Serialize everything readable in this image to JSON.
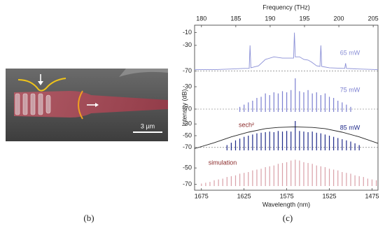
{
  "figure": {
    "panel_b_label": "(b)",
    "scale_bar": "3 µm",
    "panel_c_label": "(c)"
  },
  "chart_data": [
    {
      "type": "line",
      "x2label": "Frequency (THz)",
      "x2lim": [
        179,
        205.7
      ],
      "x2ticks": [
        180,
        185,
        190,
        195,
        200,
        205
      ],
      "xlim": [
        1683,
        1468
      ],
      "ylim": [
        -75,
        -5
      ],
      "yticks": [
        -10,
        -30,
        -70
      ],
      "reference_line": -70,
      "series": [
        {
          "name": "65 mW",
          "color": "#8a8fd6",
          "x": [
            1683,
            1660,
            1640,
            1625,
            1619,
            1618,
            1617,
            1608,
            1600,
            1590,
            1580,
            1572,
            1567,
            1566,
            1565,
            1560,
            1555,
            1550,
            1546,
            1540,
            1536,
            1535,
            1534,
            1525,
            1507,
            1506,
            1505,
            1490,
            1468
          ],
          "values": [
            -68,
            -68,
            -67,
            -66,
            -66,
            -30,
            -65,
            -62,
            -52,
            -48,
            -50,
            -50,
            -50,
            -10,
            -48,
            -48,
            -52,
            -53,
            -56,
            -62,
            -63,
            -30,
            -63,
            -65,
            -66,
            -58,
            -66,
            -67,
            -68
          ]
        }
      ]
    },
    {
      "type": "comb",
      "xlim": [
        1683,
        1468
      ],
      "ylim": [
        -75,
        -25
      ],
      "yticks": [
        -30,
        -70
      ],
      "reference_line": -70,
      "series": [
        {
          "name": "75 mW",
          "color": "#7b7fd0",
          "x": [
            1630,
            1625,
            1620,
            1615,
            1610,
            1605,
            1600,
            1595,
            1590,
            1585,
            1580,
            1575,
            1570,
            1565,
            1560,
            1555,
            1550,
            1545,
            1540,
            1535,
            1530,
            1525,
            1520,
            1515,
            1510,
            1505,
            1500
          ],
          "values": [
            -66,
            -62,
            -58,
            -55,
            -50,
            -48,
            -42,
            -45,
            -40,
            -42,
            -38,
            -40,
            -36,
            -15,
            -38,
            -40,
            -36,
            -42,
            -40,
            -45,
            -42,
            -48,
            -50,
            -55,
            -58,
            -62,
            -66
          ]
        }
      ]
    },
    {
      "type": "comb",
      "xlim": [
        1683,
        1468
      ],
      "ylim": [
        -75,
        -25
      ],
      "yticks": [
        -30,
        -50,
        -70
      ],
      "reference_line": -70,
      "series": [
        {
          "name": "85 mW",
          "color": "#1f2a8a",
          "x": [
            1645,
            1640,
            1635,
            1630,
            1625,
            1620,
            1615,
            1610,
            1605,
            1600,
            1595,
            1590,
            1585,
            1580,
            1575,
            1570,
            1565,
            1560,
            1555,
            1550,
            1545,
            1540,
            1535,
            1530,
            1525,
            1520,
            1515,
            1510,
            1505,
            1500,
            1495,
            1490
          ],
          "values": [
            -66,
            -62,
            -58,
            -55,
            -52,
            -50,
            -48,
            -46,
            -45,
            -44,
            -43,
            -44,
            -42,
            -43,
            -42,
            -43,
            -25,
            -42,
            -43,
            -44,
            -43,
            -45,
            -46,
            -48,
            -50,
            -52,
            -54,
            -56,
            -58,
            -60,
            -63,
            -66
          ]
        },
        {
          "name": "sech²",
          "color": "#222222",
          "type": "line",
          "x": [
            1683,
            1660,
            1640,
            1620,
            1600,
            1585,
            1566,
            1545,
            1530,
            1510,
            1490,
            1468
          ],
          "values": [
            -72,
            -62,
            -52,
            -44,
            -38,
            -36,
            -35,
            -36,
            -38,
            -44,
            -52,
            -63
          ]
        }
      ]
    },
    {
      "type": "comb",
      "xlabel": "Wavelength (nm)",
      "ylabel": "Intensity (dB)",
      "xlim": [
        1683,
        1468
      ],
      "xticks": [
        1675,
        1625,
        1575,
        1525,
        1475
      ],
      "ylim": [
        -72,
        -38
      ],
      "yticks": [
        -50,
        -70
      ],
      "series": [
        {
          "name": "simulation",
          "color": "#d9a0a8",
          "x": [
            1675,
            1670,
            1665,
            1660,
            1655,
            1650,
            1645,
            1640,
            1635,
            1630,
            1625,
            1620,
            1615,
            1610,
            1605,
            1600,
            1595,
            1590,
            1585,
            1580,
            1575,
            1570,
            1565,
            1560,
            1555,
            1550,
            1545,
            1540,
            1535,
            1530,
            1525,
            1520,
            1515,
            1510,
            1505,
            1500,
            1495,
            1490,
            1485,
            1480,
            1475,
            1470
          ],
          "values": [
            -69,
            -68,
            -67,
            -65,
            -64,
            -63,
            -61,
            -60,
            -59,
            -57,
            -56,
            -55,
            -53,
            -52,
            -51,
            -49,
            -48,
            -47,
            -45,
            -44,
            -43,
            -41,
            -40,
            -41,
            -43,
            -44,
            -45,
            -47,
            -48,
            -49,
            -51,
            -52,
            -53,
            -55,
            -56,
            -57,
            -59,
            -60,
            -61,
            -63,
            -64,
            -65
          ]
        }
      ]
    }
  ]
}
